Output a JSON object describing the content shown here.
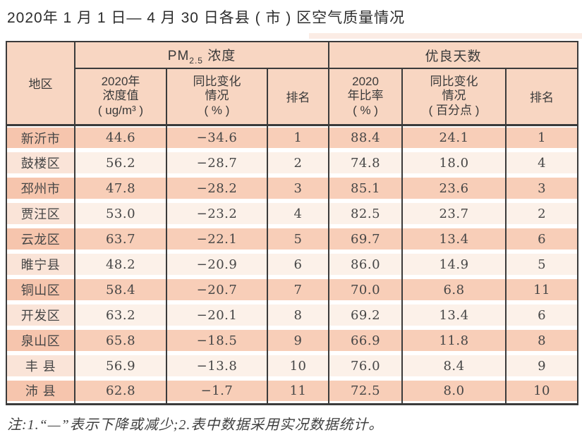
{
  "page": {
    "title": "2020年 1 月 1 日— 4 月 30 日各县 ( 市 ) 区空气质量情况",
    "note": "注:1.“—”表示下降或减少;2.表中数据采用实况数据统计。"
  },
  "table": {
    "header": {
      "region": "地区",
      "pm25_prefix": "PM",
      "pm25_sub": "2.5",
      "pm25_suffix": " 浓度",
      "good_days_group": "优良天数",
      "col_concentration": "2020年\n浓度值\n( ug/m³ )",
      "col_yoy_change_pct": "同比变化\n情况\n( % )",
      "col_rank_pm25": "排名",
      "col_year_ratio": "2020\n年比率\n( % )",
      "col_yoy_change_pp": "同比变化\n情况\n( 百分点 )",
      "col_rank_days": "排名"
    },
    "rows": [
      {
        "region": "新沂市",
        "conc": "44.6",
        "change": "−34.6",
        "rank1": "1",
        "ratio": "88.4",
        "change_pp": "24.1",
        "rank2": "1"
      },
      {
        "region": "鼓楼区",
        "conc": "56.2",
        "change": "−28.7",
        "rank1": "2",
        "ratio": "74.8",
        "change_pp": "18.0",
        "rank2": "4"
      },
      {
        "region": "邳州市",
        "conc": "47.8",
        "change": "−28.2",
        "rank1": "3",
        "ratio": "85.1",
        "change_pp": "23.6",
        "rank2": "3"
      },
      {
        "region": "贾汪区",
        "conc": "53.0",
        "change": "−23.2",
        "rank1": "4",
        "ratio": "82.5",
        "change_pp": "23.7",
        "rank2": "2"
      },
      {
        "region": "云龙区",
        "conc": "63.7",
        "change": "−22.1",
        "rank1": "5",
        "ratio": "69.7",
        "change_pp": "13.4",
        "rank2": "6"
      },
      {
        "region": "睢宁县",
        "conc": "48.2",
        "change": "−20.9",
        "rank1": "6",
        "ratio": "86.0",
        "change_pp": "14.9",
        "rank2": "5"
      },
      {
        "region": "铜山区",
        "conc": "58.4",
        "change": "−20.7",
        "rank1": "7",
        "ratio": "70.0",
        "change_pp": "6.8",
        "rank2": "11"
      },
      {
        "region": "开发区",
        "conc": "63.2",
        "change": "−20.1",
        "rank1": "8",
        "ratio": "69.2",
        "change_pp": "13.4",
        "rank2": "6"
      },
      {
        "region": "泉山区",
        "conc": "65.8",
        "change": "−18.5",
        "rank1": "9",
        "ratio": "66.9",
        "change_pp": "11.8",
        "rank2": "8"
      },
      {
        "region": "丰 县",
        "conc": "56.9",
        "change": "−13.8",
        "rank1": "10",
        "ratio": "76.0",
        "change_pp": "8.4",
        "rank2": "9"
      },
      {
        "region": "沛 县",
        "conc": "62.8",
        "change": "−1.7",
        "rank1": "11",
        "ratio": "72.5",
        "change_pp": "8.0",
        "rank2": "10"
      }
    ]
  },
  "colors": {
    "header_bg": "#f8d6c2",
    "row_odd_bg": "#f8ceb8",
    "row_even_bg": "#fcf1e9",
    "region_odd_bg": "#f6c5ad",
    "region_even_bg": "#fae4d8",
    "table_border": "#3b3b3b",
    "accent_strip": "#fae5dc"
  }
}
